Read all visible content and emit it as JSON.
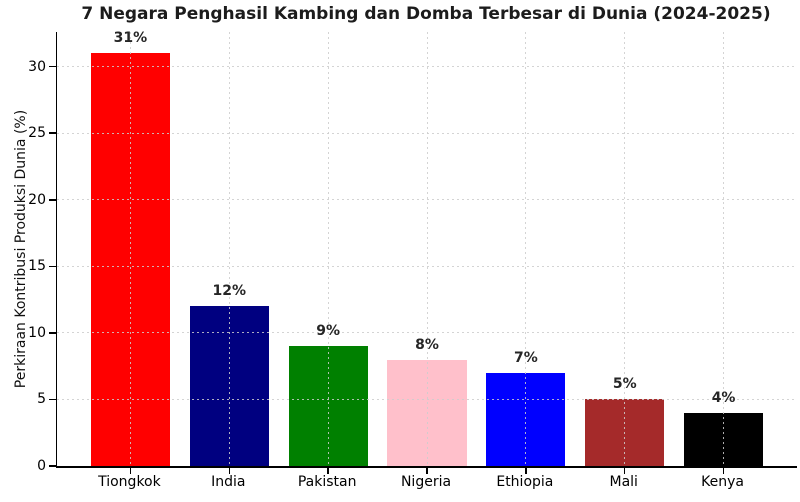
{
  "chart_data": {
    "type": "bar",
    "title": "7 Negara Penghasil Kambing dan Domba Terbesar di Dunia (2024-2025)",
    "xlabel": "",
    "ylabel": "Perkiraan Kontribusi Produksi Dunia (%)",
    "categories": [
      "Tiongkok",
      "India",
      "Pakistan",
      "Nigeria",
      "Ethiopia",
      "Mali",
      "Kenya"
    ],
    "values": [
      31,
      12,
      9,
      8,
      7,
      5,
      4
    ],
    "value_labels": [
      "31%",
      "12%",
      "9%",
      "8%",
      "7%",
      "5%",
      "4%"
    ],
    "bar_colors": [
      "#ff0000",
      "#000080",
      "#008000",
      "#ffc0cb",
      "#0000ff",
      "#a52a2a",
      "#000000"
    ],
    "y_ticks": [
      0,
      5,
      10,
      15,
      20,
      25,
      30
    ],
    "ylim": [
      0,
      32.6
    ],
    "legend": "none",
    "grid": "dotted light-gray gridlines, horizontal and vertical, drawn above bars",
    "colors": {
      "background": "#ffffff",
      "spine": "#000000",
      "grid": "#cdcdcd",
      "title_text": "#1c1c1c",
      "tick_text": "#000000",
      "value_label_text": "#262626"
    }
  }
}
